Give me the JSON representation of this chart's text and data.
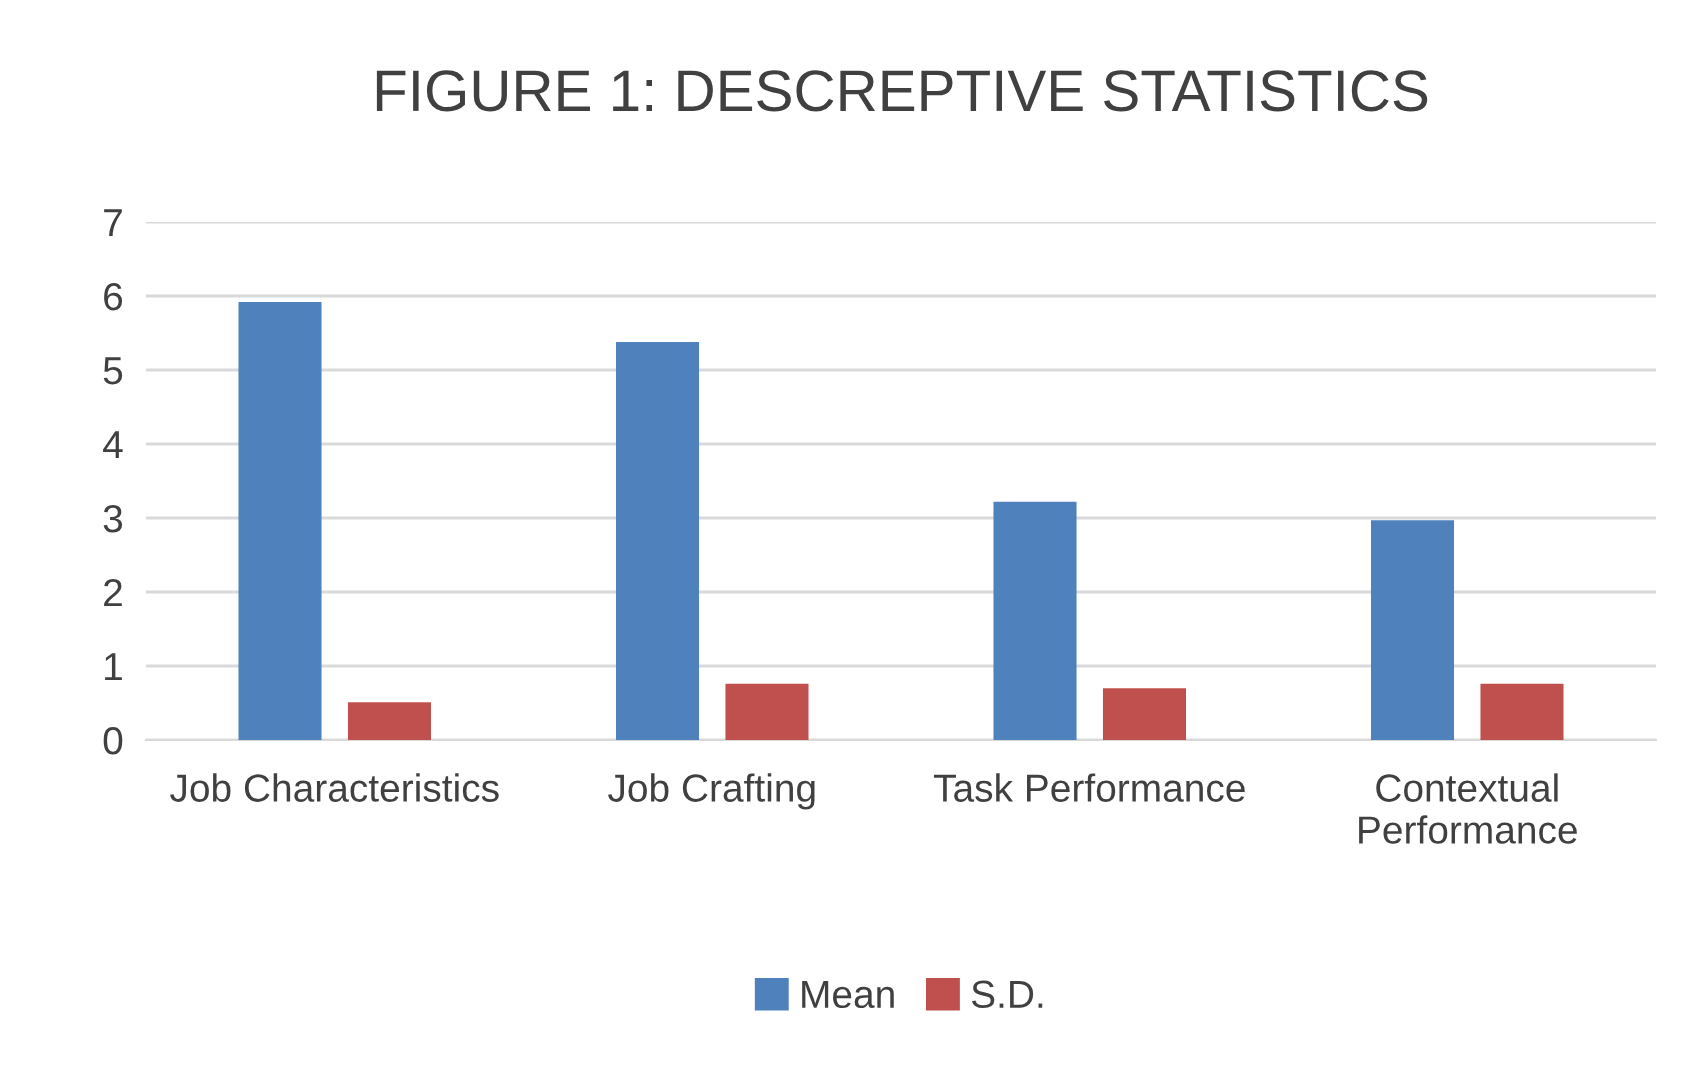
{
  "chart_data": {
    "type": "bar",
    "title": "FIGURE 1: DESCREPTIVE STATISTICS",
    "categories": [
      "Job Characteristics",
      "Job Crafting",
      "Task Performance",
      "Contextual Performance"
    ],
    "series": [
      {
        "name": "Mean",
        "color": "#4f81bd",
        "values": [
          5.92,
          5.38,
          3.22,
          2.97
        ]
      },
      {
        "name": "S.D.",
        "color": "#c0504d",
        "values": [
          0.51,
          0.76,
          0.7,
          0.76
        ]
      }
    ],
    "ylim": [
      0,
      7
    ],
    "yticks": [
      0,
      1,
      2,
      3,
      4,
      5,
      6,
      7
    ],
    "grid": "y",
    "legend": "bottom"
  }
}
